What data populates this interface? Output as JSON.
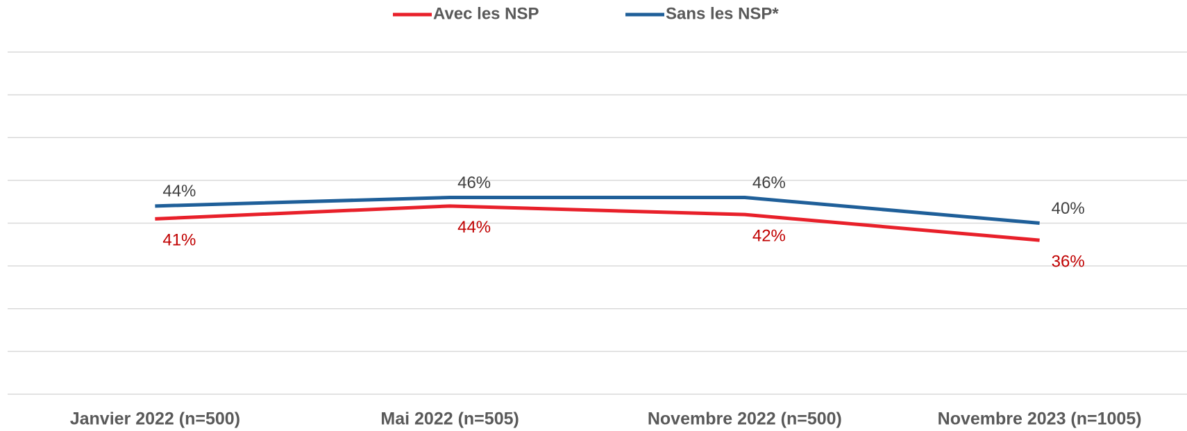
{
  "chart_data": {
    "type": "line",
    "categories": [
      "Janvier 2022 (n=500)",
      "Mai 2022 (n=505)",
      "Novembre 2022 (n=500)",
      "Novembre 2023 (n=1005)"
    ],
    "series": [
      {
        "name": "Avec les NSP",
        "color": "#e8202a",
        "label_color": "#c00000",
        "values": [
          41,
          44,
          42,
          36
        ],
        "value_labels": [
          "41%",
          "44%",
          "42%",
          "36%"
        ]
      },
      {
        "name": "Sans les NSP*",
        "color": "#1f5f99",
        "label_color": "#404040",
        "values": [
          44,
          46,
          46,
          40
        ],
        "value_labels": [
          "44%",
          "46%",
          "46%",
          "40%"
        ]
      }
    ],
    "ylim": [
      0,
      80
    ],
    "yticks": [
      0,
      10,
      20,
      30,
      40,
      50,
      60,
      70,
      80
    ],
    "grid": true,
    "legend": "top"
  }
}
